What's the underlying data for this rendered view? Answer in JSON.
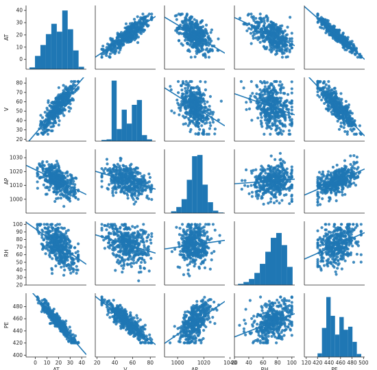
{
  "chart_data": {
    "type": "pairplot",
    "variables": [
      {
        "name": "AT",
        "range": [
          -8,
          44
        ],
        "ticks": [
          0,
          10,
          20,
          30,
          40
        ],
        "hist_range": [
          -5,
          42
        ],
        "hist_bins": [
          0.03,
          0.22,
          0.4,
          0.58,
          0.75,
          0.62,
          0.97,
          0.66,
          0.31,
          0.04
        ]
      },
      {
        "name": "V",
        "range": [
          18,
          86
        ],
        "ticks": [
          20,
          30,
          40,
          50,
          60,
          70,
          80
        ],
        "hist_range": [
          25,
          82
        ],
        "hist_bins": [
          0.02,
          0.03,
          1.0,
          0.2,
          0.52,
          0.29,
          0.6,
          0.68,
          0.1,
          0.03
        ]
      },
      {
        "name": "AP",
        "range": [
          990,
          1036
        ],
        "ticks": [
          1000,
          1010,
          1020,
          1030
        ],
        "hist_range": [
          995,
          1035
        ],
        "hist_bins": [
          0.03,
          0.1,
          0.23,
          0.55,
          0.94,
          0.96,
          0.47,
          0.18,
          0.04,
          0.01
        ]
      },
      {
        "name": "RH",
        "range": [
          20,
          104
        ],
        "ticks": [
          20,
          30,
          40,
          50,
          60,
          70,
          80,
          90,
          100
        ],
        "hist_range": [
          25,
          101
        ],
        "hist_bins": [
          0.02,
          0.05,
          0.1,
          0.2,
          0.35,
          0.55,
          0.78,
          0.86,
          0.66,
          0.3
        ]
      },
      {
        "name": "PE",
        "range": [
          397,
          502
        ],
        "ticks": [
          400,
          420,
          440,
          460,
          480
        ],
        "hist_range": [
          420,
          496
        ],
        "hist_bins": [
          0.06,
          0.48,
          0.99,
          0.68,
          0.37,
          0.66,
          0.45,
          0.5,
          0.25,
          0.05
        ]
      }
    ],
    "x_axis_ticks": {
      "AT": [
        0,
        10,
        20,
        30,
        40
      ],
      "V": [
        20,
        40,
        60,
        80
      ],
      "AP": [
        1000,
        1020,
        1040
      ],
      "RH": [
        20,
        40,
        60,
        80,
        100,
        120
      ],
      "PE": [
        420,
        440,
        460,
        480,
        500
      ]
    },
    "point_color": "#1f77b4",
    "fit_line_color": "#1f77b4"
  }
}
